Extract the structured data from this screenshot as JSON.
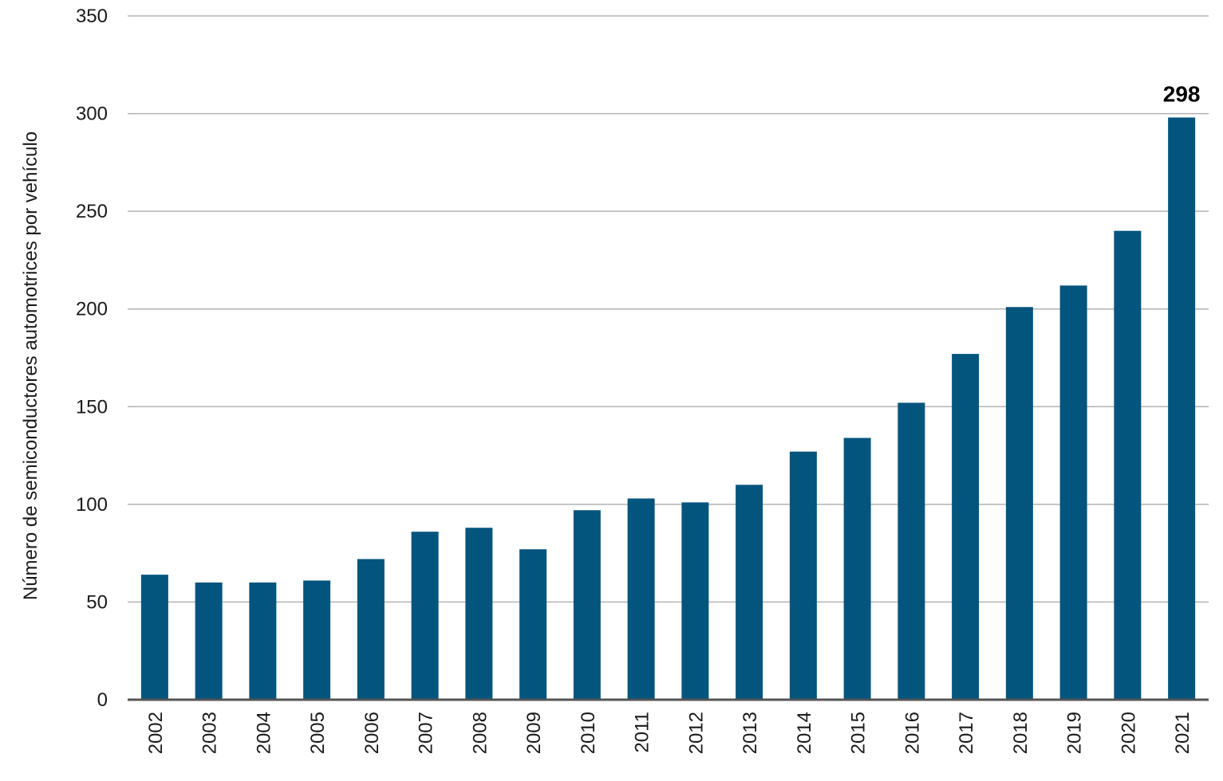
{
  "chart_data": {
    "type": "bar",
    "title": "",
    "xlabel": "",
    "ylabel": "Número de semiconductores automotrices por vehículo",
    "ylim": [
      0,
      350
    ],
    "yticks": [
      0,
      50,
      100,
      150,
      200,
      250,
      300,
      350
    ],
    "grid": true,
    "categories": [
      "2002",
      "2003",
      "2004",
      "2005",
      "2006",
      "2007",
      "2008",
      "2009",
      "2010",
      "2011",
      "2012",
      "2013",
      "2014",
      "2015",
      "2016",
      "2017",
      "2018",
      "2019",
      "2020",
      "2021"
    ],
    "values": [
      64,
      60,
      60,
      61,
      72,
      86,
      88,
      77,
      97,
      103,
      101,
      110,
      127,
      134,
      152,
      177,
      201,
      212,
      240,
      298
    ],
    "annotations": [
      {
        "category": "2021",
        "text": "298"
      }
    ],
    "colors": {
      "bar": "#03557e",
      "grid": "#b3b3b8",
      "axis": "#555555"
    }
  }
}
